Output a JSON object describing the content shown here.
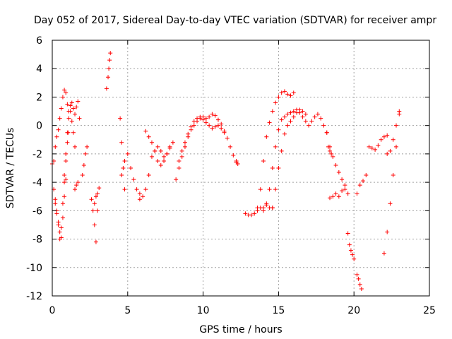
{
  "chart_data": {
    "type": "scatter",
    "title": "Day 052 of 2017, Sidereal Day-to-day VTEC variation (SDTVAR) for receiver ampr",
    "xlabel": "GPS time / hours",
    "ylabel": "SDTVAR / TECUs",
    "xlim": [
      0,
      25
    ],
    "ylim": [
      -12,
      6
    ],
    "xticks": [
      0,
      5,
      10,
      15,
      20,
      25
    ],
    "yticks": [
      -12,
      -10,
      -8,
      -6,
      -4,
      -2,
      0,
      2,
      4,
      6
    ],
    "xtick_labels": [
      "0",
      "5",
      "10",
      "15",
      "20",
      "25"
    ],
    "ytick_labels": [
      "-12",
      "-10",
      "-8",
      "-6",
      "-4",
      "-2",
      "0",
      "2",
      "4",
      "6"
    ],
    "grid": true,
    "marker": "+",
    "color": "#ff0000",
    "series": [
      {
        "name": "s1",
        "x": [
          0.0,
          0.1,
          0.2,
          0.3,
          0.4,
          0.5,
          0.6,
          0.7,
          0.8,
          0.9,
          1.0,
          1.05
        ],
        "y": [
          -2.7,
          -4.5,
          -5.2,
          -6.0,
          -7.0,
          -8.0,
          -7.2,
          -5.5,
          -4.0,
          -2.5,
          -1.2,
          -0.5
        ]
      },
      {
        "name": "s2",
        "x": [
          0.1,
          0.2,
          0.3,
          0.4,
          0.5,
          0.6,
          0.7,
          0.8,
          0.9,
          1.0,
          1.1,
          1.2,
          1.3,
          1.4,
          1.5,
          1.6,
          1.7,
          1.8
        ],
        "y": [
          -2.5,
          -1.5,
          -0.8,
          -0.3,
          0.5,
          1.2,
          2.0,
          2.5,
          2.3,
          1.5,
          1.0,
          1.4,
          1.6,
          1.2,
          0.8,
          1.3,
          1.7,
          0.5
        ]
      },
      {
        "name": "s3",
        "x": [
          0.2,
          0.3,
          0.4,
          0.5,
          0.6,
          0.7,
          0.8,
          0.9
        ],
        "y": [
          -5.5,
          -6.2,
          -6.8,
          -7.5,
          -7.9,
          -6.5,
          -5.0,
          -3.8
        ]
      },
      {
        "name": "s4",
        "x": [
          0.8,
          0.9,
          1.0,
          1.1,
          1.2,
          1.3,
          1.4,
          1.5
        ],
        "y": [
          -3.5,
          -2.0,
          -0.5,
          0.5,
          1.0,
          0.3,
          -0.5,
          -1.5
        ]
      },
      {
        "name": "s5",
        "x": [
          1.5,
          1.6,
          1.7
        ],
        "y": [
          -4.5,
          -4.2,
          -4.0
        ]
      },
      {
        "name": "s6",
        "x": [
          2.0,
          2.1,
          2.2,
          2.3
        ],
        "y": [
          -3.5,
          -2.8,
          -2.0,
          -1.5
        ]
      },
      {
        "name": "s7",
        "x": [
          2.6,
          2.7,
          2.8,
          2.9,
          3.0
        ],
        "y": [
          -5.2,
          -6.0,
          -7.0,
          -8.2,
          -6.0
        ]
      },
      {
        "name": "s8",
        "x": [
          2.8,
          2.9,
          3.0,
          3.1
        ],
        "y": [
          -5.5,
          -5.0,
          -4.8,
          -4.4
        ]
      },
      {
        "name": "s9",
        "x": [
          3.6,
          3.7,
          3.75,
          3.8,
          3.85
        ],
        "y": [
          2.6,
          3.4,
          4.0,
          4.6,
          5.1
        ]
      },
      {
        "name": "s10",
        "x": [
          4.5,
          4.6,
          4.7,
          4.8
        ],
        "y": [
          0.5,
          -1.2,
          -3.0,
          -4.5
        ]
      },
      {
        "name": "s11",
        "x": [
          4.6,
          4.8,
          5.0,
          5.2,
          5.4,
          5.6,
          5.8
        ],
        "y": [
          -3.5,
          -2.5,
          -2.0,
          -3.0,
          -3.8,
          -4.5,
          -4.8
        ]
      },
      {
        "name": "s12",
        "x": [
          5.8,
          6.0,
          6.2,
          6.4,
          6.6,
          6.8,
          7.0,
          7.2,
          7.4,
          7.6,
          7.8,
          8.0
        ],
        "y": [
          -5.2,
          -5.0,
          -4.5,
          -3.5,
          -2.2,
          -1.8,
          -1.5,
          -1.8,
          -2.2,
          -2.0,
          -1.5,
          -1.2
        ]
      },
      {
        "name": "s13",
        "x": [
          6.2,
          6.4,
          6.6,
          6.8,
          7.0,
          7.2,
          7.4,
          7.6,
          7.8
        ],
        "y": [
          -0.4,
          -0.8,
          -1.2,
          -1.8,
          -2.5,
          -2.8,
          -2.5,
          -2.0,
          -1.6
        ]
      },
      {
        "name": "s14",
        "x": [
          8.2,
          8.4,
          8.6,
          8.8,
          9.0,
          9.2,
          9.4,
          9.6,
          9.8,
          10.0,
          10.2,
          10.4,
          10.6,
          10.8,
          11.0,
          11.2,
          11.4,
          11.6,
          11.8,
          12.0,
          12.2
        ],
        "y": [
          -3.8,
          -3.0,
          -2.2,
          -1.5,
          -0.8,
          -0.3,
          0.0,
          0.3,
          0.5,
          0.6,
          0.5,
          0.6,
          0.8,
          0.7,
          0.4,
          0.1,
          -0.4,
          -0.9,
          -1.5,
          -2.1,
          -2.5
        ]
      },
      {
        "name": "s15",
        "x": [
          8.4,
          8.6,
          8.8,
          9.0,
          9.2,
          9.4,
          9.6,
          9.8,
          10.0,
          10.2,
          10.4,
          10.6,
          10.8,
          11.0,
          11.2,
          11.4
        ],
        "y": [
          -2.5,
          -1.8,
          -1.2,
          -0.6,
          -0.1,
          0.3,
          0.5,
          0.6,
          0.4,
          0.2,
          0.0,
          -0.2,
          -0.1,
          0.0,
          -0.2,
          -0.5
        ]
      },
      {
        "name": "s16",
        "x": [
          12.2,
          12.3
        ],
        "y": [
          -2.6,
          -2.7
        ]
      },
      {
        "name": "s17",
        "x": [
          12.8,
          13.0,
          13.2,
          13.4,
          13.6,
          13.8,
          14.0,
          14.2,
          14.4,
          14.6
        ],
        "y": [
          -6.2,
          -6.3,
          -6.3,
          -6.2,
          -6.0,
          -5.8,
          -5.8,
          -5.6,
          -5.8,
          -5.8
        ]
      },
      {
        "name": "s18",
        "x": [
          13.6,
          13.8,
          14.0,
          14.2,
          14.4,
          14.6,
          14.8,
          15.0,
          15.2,
          15.4,
          15.6,
          15.8,
          16.0
        ],
        "y": [
          -5.8,
          -4.5,
          -2.5,
          -0.8,
          0.2,
          1.0,
          1.6,
          2.0,
          2.3,
          2.4,
          2.2,
          2.1,
          2.3
        ]
      },
      {
        "name": "s19",
        "x": [
          14.0,
          14.2,
          14.4,
          14.6,
          14.8,
          15.0,
          15.2,
          15.4,
          15.6,
          15.8,
          16.0,
          16.2,
          16.4,
          16.6,
          16.8,
          17.0,
          17.2,
          17.4,
          17.6,
          17.8,
          18.0,
          18.2
        ],
        "y": [
          -6.0,
          -5.5,
          -4.5,
          -3.0,
          -1.5,
          -0.3,
          0.4,
          0.6,
          0.8,
          0.9,
          1.0,
          1.1,
          0.9,
          0.6,
          0.3,
          0.0,
          0.3,
          0.6,
          0.8,
          0.5,
          0.0,
          -0.5
        ]
      },
      {
        "name": "s20",
        "x": [
          14.6,
          14.8,
          15.0,
          15.2,
          15.4,
          15.6,
          15.8,
          16.0,
          16.2,
          16.4,
          16.6,
          16.8
        ],
        "y": [
          -5.8,
          -4.5,
          -3.0,
          -1.8,
          -0.6,
          0.0,
          0.3,
          0.6,
          0.9,
          1.1,
          1.0,
          0.8
        ]
      },
      {
        "name": "s21",
        "x": [
          18.2,
          18.3,
          18.4,
          18.5
        ],
        "y": [
          -0.5,
          -1.5,
          -1.8,
          -2.0
        ]
      },
      {
        "name": "s22",
        "x": [
          18.4,
          18.6,
          18.8,
          19.0,
          19.2,
          19.4,
          19.6
        ],
        "y": [
          -1.5,
          -2.2,
          -2.8,
          -3.3,
          -3.8,
          -4.2,
          -4.8
        ]
      },
      {
        "name": "s23",
        "x": [
          18.4,
          18.6,
          18.8,
          19.0,
          19.2,
          19.4
        ],
        "y": [
          -5.1,
          -5.0,
          -4.8,
          -5.0,
          -4.6,
          -4.5
        ]
      },
      {
        "name": "s24",
        "x": [
          19.6,
          19.7,
          19.8,
          19.9,
          20.0
        ],
        "y": [
          -7.6,
          -8.4,
          -8.8,
          -9.1,
          -9.4
        ]
      },
      {
        "name": "s25",
        "x": [
          20.2,
          20.3,
          20.4,
          20.5
        ],
        "y": [
          -10.5,
          -10.8,
          -11.2,
          -11.5
        ]
      },
      {
        "name": "s26",
        "x": [
          20.2,
          20.4,
          20.6,
          20.8
        ],
        "y": [
          -4.8,
          -4.2,
          -3.9,
          -3.5
        ]
      },
      {
        "name": "s27",
        "x": [
          21.0,
          21.2,
          21.4,
          21.6,
          21.8,
          22.0,
          22.2
        ],
        "y": [
          -1.5,
          -1.6,
          -1.7,
          -1.4,
          -1.0,
          -0.8,
          -0.7
        ]
      },
      {
        "name": "s28",
        "x": [
          22.0,
          22.2,
          22.4,
          22.6,
          22.8,
          23.0
        ],
        "y": [
          -9.0,
          -7.5,
          -5.5,
          -3.5,
          -1.5,
          1.0
        ]
      },
      {
        "name": "s29",
        "x": [
          22.2,
          22.4,
          22.6,
          22.8,
          23.0
        ],
        "y": [
          -2.0,
          -1.8,
          -1.0,
          0.0,
          0.8
        ]
      }
    ]
  }
}
